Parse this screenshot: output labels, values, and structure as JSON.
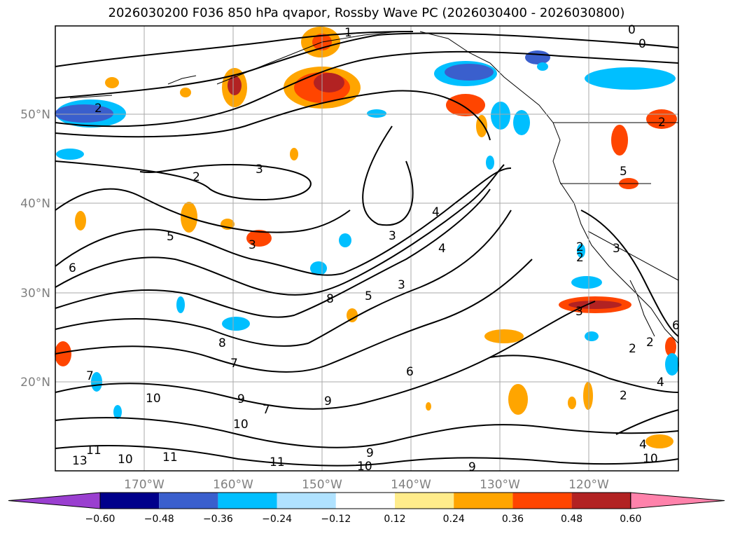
{
  "title": "2026030200 F036 850 hPa qvapor, Rossby Wave PC (2026030400 - 2026030800)",
  "map": {
    "lon_range": [
      -180,
      -110
    ],
    "lat_range": [
      10,
      60
    ],
    "lon_ticks": [
      "170°W",
      "160°W",
      "150°W",
      "140°W",
      "130°W",
      "120°W"
    ],
    "lat_ticks": [
      "50°N",
      "40°N",
      "30°N",
      "20°N"
    ],
    "contour_labels": [
      "1",
      "0",
      "0",
      "2",
      "2",
      "3",
      "2",
      "5",
      "5",
      "4",
      "4",
      "3",
      "3",
      "6",
      "8",
      "5",
      "3",
      "7",
      "8",
      "7",
      "9",
      "10",
      "7",
      "6",
      "10",
      "9",
      "9",
      "10",
      "11",
      "11",
      "10",
      "13",
      "11",
      "9",
      "2",
      "2",
      "3",
      "2",
      "2",
      "4",
      "2",
      "10",
      "4",
      "6",
      "3"
    ]
  },
  "colorbar": {
    "colors": [
      "#9a3fd0",
      "#00008b",
      "#3a5fcd",
      "#00bfff",
      "#b0e2ff",
      "#ffffff",
      "#ffec8b",
      "#ffa500",
      "#ff4500",
      "#b22222",
      "#ff82ab"
    ],
    "labels": [
      "−0.60",
      "−0.48",
      "−0.36",
      "−0.24",
      "−0.12",
      "0.12",
      "0.24",
      "0.36",
      "0.48",
      "0.60"
    ]
  }
}
